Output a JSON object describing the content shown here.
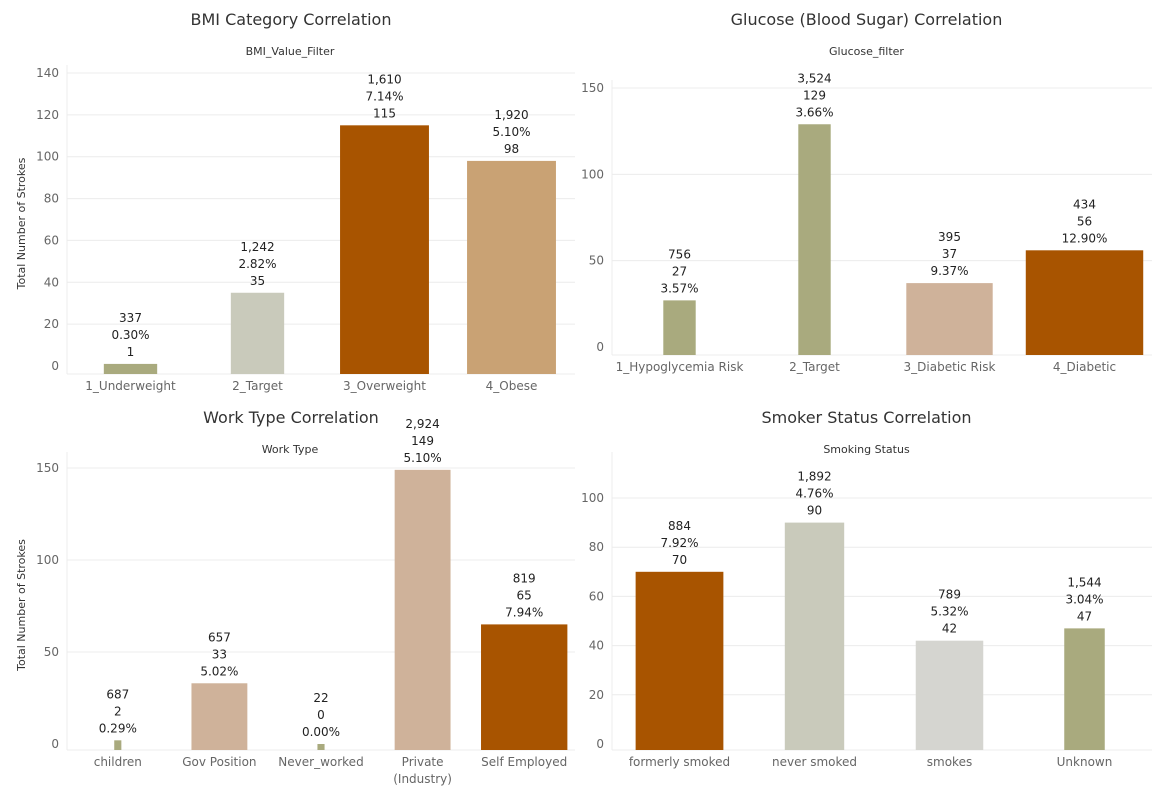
{
  "colors": {
    "brown": "#a85400",
    "tan": "#c9a274",
    "light_tan": "#cfb29a",
    "gray_green": "#c9cabb",
    "light_gray": "#d5d5d0",
    "olive": "#a9aa7e",
    "grid": "#ececec",
    "axis_text": "#666666",
    "label_text": "#222222"
  },
  "chart_data": [
    {
      "type": "bar",
      "title": "BMI Category Correlation",
      "subtitle": "BMI_Value_Filter",
      "ylabel": "Total Number of Strokes",
      "xlabel": "",
      "ylim": [
        0,
        140
      ],
      "yticks": [
        0,
        20,
        40,
        60,
        80,
        100,
        120,
        140
      ],
      "grid": true,
      "categories": [
        "1_Underweight",
        "2_Target",
        "3_Overweight",
        "4_Obese"
      ],
      "values": [
        1,
        35,
        115,
        98
      ],
      "bar_colors": [
        "olive",
        "gray_green",
        "brown",
        "tan"
      ],
      "data_labels": [
        [
          "337",
          "0.30%",
          "1"
        ],
        [
          "1,242",
          "2.82%",
          "35"
        ],
        [
          "1,610",
          "7.14%",
          "115"
        ],
        [
          "1,920",
          "5.10%",
          "98"
        ]
      ]
    },
    {
      "type": "bar",
      "title": "Glucose (Blood Sugar) Correlation",
      "subtitle": "Glucose_filter",
      "ylabel": "",
      "xlabel": "",
      "ylim": [
        0,
        160
      ],
      "yticks": [
        0,
        50,
        100,
        150
      ],
      "grid": true,
      "categories": [
        "1_Hypoglycemia Risk",
        "2_Target",
        "3_Diabetic Risk",
        "4_Diabetic"
      ],
      "values": [
        27,
        129,
        37,
        56
      ],
      "bar_colors": [
        "olive",
        "olive",
        "light_tan",
        "brown"
      ],
      "data_labels": [
        [
          "756",
          "27",
          "3.57%"
        ],
        [
          "3,524",
          "129",
          "3.66%"
        ],
        [
          "395",
          "37",
          "9.37%"
        ],
        [
          "434",
          "56",
          "12.90%"
        ]
      ]
    },
    {
      "type": "bar",
      "title": "Work Type Correlation",
      "subtitle": "Work Type",
      "ylabel": "Total Number of Strokes",
      "xlabel": "",
      "ylim": [
        0,
        160
      ],
      "yticks": [
        0,
        50,
        100,
        150
      ],
      "grid": true,
      "categories": [
        "children",
        "Gov Position",
        "Never_worked",
        "Private\n(Industry)",
        "Self Employed"
      ],
      "values": [
        2,
        33,
        0,
        149,
        65
      ],
      "bar_colors": [
        "olive",
        "light_tan",
        "olive",
        "light_tan",
        "brown"
      ],
      "data_labels": [
        [
          "687",
          "2",
          "0.29%"
        ],
        [
          "657",
          "33",
          "5.02%"
        ],
        [
          "22",
          "0",
          "0.00%"
        ],
        [
          "2,924",
          "149",
          "5.10%"
        ],
        [
          "819",
          "65",
          "7.94%"
        ]
      ]
    },
    {
      "type": "bar",
      "title": "Smoker Status Correlation",
      "subtitle": "Smoking Status",
      "ylabel": "",
      "xlabel": "",
      "ylim": [
        0,
        110
      ],
      "yticks": [
        0,
        20,
        40,
        60,
        80,
        100
      ],
      "grid": true,
      "categories": [
        "formerly smoked",
        "never smoked",
        "smokes",
        "Unknown"
      ],
      "values": [
        70,
        90,
        42,
        47
      ],
      "bar_colors": [
        "brown",
        "gray_green",
        "light_gray",
        "olive"
      ],
      "data_labels": [
        [
          "884",
          "7.92%",
          "70"
        ],
        [
          "1,892",
          "4.76%",
          "90"
        ],
        [
          "789",
          "5.32%",
          "42"
        ],
        [
          "1,544",
          "3.04%",
          "47"
        ]
      ]
    }
  ]
}
